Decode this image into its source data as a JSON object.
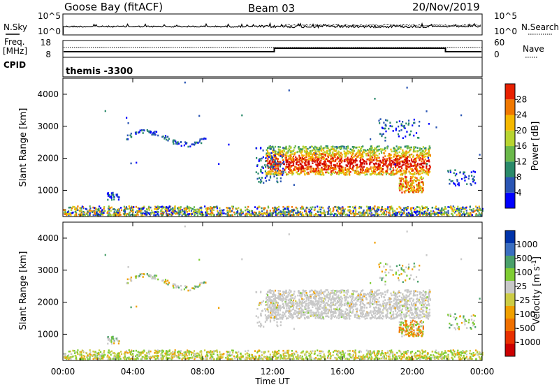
{
  "header": {
    "station": "Goose Bay (fitACF)",
    "beam": "Beam 03",
    "date": "20/Nov/2019"
  },
  "top_panels": {
    "nsky_label": "N.Sky",
    "nsky_ticks": [
      "10^5",
      "10^0"
    ],
    "nsearch_label": "N.Search",
    "nsearch_ticks": [
      "10^5",
      "10^0"
    ],
    "freq_label": "Freq.",
    "freq_unit": "[MHz]",
    "freq_ticks": [
      "18",
      "8"
    ],
    "nave_label": "Nave",
    "nave_ticks": [
      "60",
      "0"
    ],
    "cpid_label": "CPID",
    "cpid_text": "themis -3300"
  },
  "colors": {
    "power": [
      "#0000ff",
      "#2a55b4",
      "#2a8a6a",
      "#6ab84a",
      "#b8d430",
      "#f5b800",
      "#f07800",
      "#e82000",
      "#cc0000"
    ],
    "velocity": [
      "#0033aa",
      "#3a6ec0",
      "#4aa06a",
      "#7fcc33",
      "#c8c8c8",
      "#cccc44",
      "#f0a000",
      "#f07000",
      "#e83000",
      "#cc0000"
    ]
  },
  "chart_data": [
    {
      "type": "heatmap",
      "name": "power",
      "ylabel": "Slant Range [km]",
      "x_ticks": [
        "00:00",
        "04:00",
        "08:00",
        "12:00",
        "16:00",
        "20:00",
        "00:00"
      ],
      "y_ticks": [
        1000,
        2000,
        3000,
        4000
      ],
      "x_range_hours": [
        0,
        24
      ],
      "y_range_km": [
        180,
        4500
      ],
      "colorbar_label": "Power [dB]",
      "colorbar_ticks": [
        "4",
        "8",
        "12",
        "16",
        "20",
        "24",
        "28"
      ],
      "colorbar_range": [
        0,
        32
      ]
    },
    {
      "type": "heatmap",
      "name": "velocity",
      "ylabel": "Slant Range [km]",
      "xlabel": "Time UT",
      "x_ticks": [
        "00:00",
        "04:00",
        "08:00",
        "12:00",
        "16:00",
        "20:00",
        "00:00"
      ],
      "y_ticks": [
        1000,
        2000,
        3000,
        4000
      ],
      "x_range_hours": [
        0,
        24
      ],
      "y_range_km": [
        180,
        4500
      ],
      "colorbar_label": "Velocity [m s",
      "colorbar_label_sup": "-1",
      "colorbar_label_end": "]",
      "colorbar_ticks": [
        "1000",
        "500",
        "100",
        "25",
        "-25",
        "-100",
        "-500",
        "-1000"
      ]
    }
  ]
}
